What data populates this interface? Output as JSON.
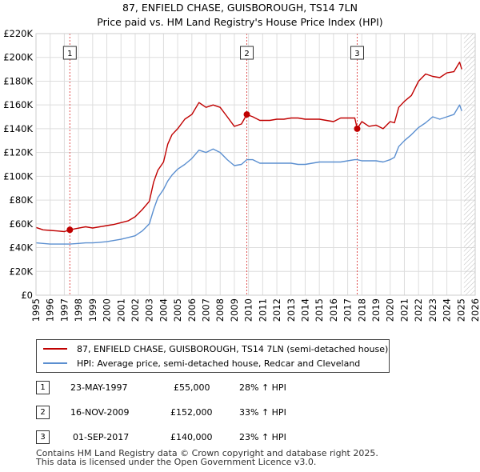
{
  "title_line1": "87, ENFIELD CHASE, GUISBOROUGH, TS14 7LN",
  "title_line2": "Price paid vs. HM Land Registry's House Price Index (HPI)",
  "colors": {
    "property": "#c00000",
    "hpi": "#5b8fd0",
    "grid": "#dddddd",
    "marker_line": "#e05050",
    "future_hatch": "#bbbbbb"
  },
  "chart_data": {
    "type": "line",
    "title": "87, ENFIELD CHASE, GUISBOROUGH, TS14 7LN — Price paid vs. HM Land Registry's House Price Index (HPI)",
    "xlabel": "",
    "ylabel": "",
    "xlim": [
      1995,
      2026
    ],
    "ylim": [
      0,
      220000
    ],
    "x_ticks": [
      "1995",
      "1996",
      "1997",
      "1998",
      "1999",
      "2000",
      "2001",
      "2002",
      "2003",
      "2004",
      "2005",
      "2006",
      "2007",
      "2008",
      "2009",
      "2010",
      "2011",
      "2012",
      "2013",
      "2014",
      "2015",
      "2016",
      "2017",
      "2018",
      "2019",
      "2020",
      "2021",
      "2022",
      "2023",
      "2024",
      "2025",
      "2026"
    ],
    "y_ticks": [
      "£0",
      "£20K",
      "£40K",
      "£60K",
      "£80K",
      "£100K",
      "£120K",
      "£140K",
      "£160K",
      "£180K",
      "£200K",
      "£220K"
    ],
    "grid": true,
    "data_end_year": 2025.2,
    "series": [
      {
        "name": "87, ENFIELD CHASE, GUISBOROUGH, TS14 7LN (semi-detached house)",
        "x": [
          1995.0,
          1995.5,
          1996.0,
          1996.5,
          1997.0,
          1997.39,
          1997.8,
          1998.5,
          1999.0,
          1999.5,
          2000.0,
          2000.5,
          2001.0,
          2001.5,
          2002.0,
          2002.5,
          2003.0,
          2003.3,
          2003.6,
          2004.0,
          2004.3,
          2004.6,
          2005.0,
          2005.5,
          2006.0,
          2006.5,
          2007.0,
          2007.5,
          2008.0,
          2008.5,
          2009.0,
          2009.5,
          2009.88,
          2010.3,
          2010.8,
          2011.5,
          2012.0,
          2012.5,
          2013.0,
          2013.5,
          2014.0,
          2014.5,
          2015.0,
          2015.5,
          2016.0,
          2016.5,
          2017.0,
          2017.5,
          2017.67,
          2018.0,
          2018.5,
          2019.0,
          2019.5,
          2020.0,
          2020.3,
          2020.6,
          2021.0,
          2021.5,
          2022.0,
          2022.5,
          2023.0,
          2023.5,
          2024.0,
          2024.5,
          2024.9,
          2025.05
        ],
        "y": [
          57000,
          55000,
          54500,
          54000,
          53500,
          55000,
          56000,
          57500,
          56500,
          57500,
          58500,
          59500,
          61000,
          62500,
          66000,
          72000,
          79000,
          95000,
          105000,
          112000,
          127000,
          135000,
          140000,
          148000,
          152000,
          162000,
          158000,
          160000,
          158000,
          150000,
          142000,
          144000,
          152000,
          150000,
          147000,
          147000,
          148000,
          148000,
          149000,
          149000,
          148000,
          148000,
          148000,
          147000,
          146000,
          149000,
          149000,
          149000,
          140000,
          146000,
          142000,
          143000,
          140000,
          146000,
          145000,
          158000,
          163000,
          168000,
          180000,
          186000,
          184000,
          183000,
          187000,
          188000,
          196000,
          190000
        ]
      },
      {
        "name": "HPI: Average price, semi-detached house, Redcar and Cleveland",
        "x": [
          1995.0,
          1995.5,
          1996.0,
          1996.5,
          1997.0,
          1997.39,
          1998.0,
          1998.5,
          1999.0,
          1999.5,
          2000.0,
          2000.5,
          2001.0,
          2001.5,
          2002.0,
          2002.5,
          2003.0,
          2003.3,
          2003.6,
          2004.0,
          2004.3,
          2004.6,
          2005.0,
          2005.5,
          2006.0,
          2006.5,
          2007.0,
          2007.5,
          2008.0,
          2008.5,
          2009.0,
          2009.5,
          2009.88,
          2010.3,
          2010.8,
          2011.5,
          2012.0,
          2012.5,
          2013.0,
          2013.5,
          2014.0,
          2014.5,
          2015.0,
          2015.5,
          2016.0,
          2016.5,
          2017.0,
          2017.5,
          2017.67,
          2018.0,
          2018.5,
          2019.0,
          2019.5,
          2020.0,
          2020.3,
          2020.6,
          2021.0,
          2021.5,
          2022.0,
          2022.5,
          2023.0,
          2023.5,
          2024.0,
          2024.5,
          2024.9,
          2025.05
        ],
        "y": [
          44000,
          43500,
          43000,
          43000,
          43000,
          43000,
          43500,
          44000,
          44000,
          44500,
          45000,
          46000,
          47000,
          48500,
          50000,
          54000,
          60000,
          72000,
          82000,
          89000,
          96000,
          101000,
          106000,
          110000,
          115000,
          122000,
          120000,
          123000,
          120000,
          114000,
          109000,
          110000,
          114000,
          114000,
          111000,
          111000,
          111000,
          111000,
          111000,
          110000,
          110000,
          111000,
          112000,
          112000,
          112000,
          112000,
          113000,
          114000,
          114000,
          113000,
          113000,
          113000,
          112000,
          114000,
          116000,
          125000,
          130000,
          135000,
          141000,
          145000,
          150000,
          148000,
          150000,
          152000,
          160000,
          155000
        ]
      }
    ],
    "sales": [
      {
        "label": "1",
        "x": 1997.39,
        "y": 55000,
        "date": "23-MAY-1997",
        "price": "£55,000",
        "hpi": "28% ↑ HPI"
      },
      {
        "label": "2",
        "x": 2009.88,
        "y": 152000,
        "date": "16-NOV-2009",
        "price": "£152,000",
        "hpi": "33% ↑ HPI"
      },
      {
        "label": "3",
        "x": 2017.67,
        "y": 140000,
        "date": "01-SEP-2017",
        "price": "£140,000",
        "hpi": "23% ↑ HPI"
      }
    ]
  },
  "legend": {
    "property": "87, ENFIELD CHASE, GUISBOROUGH, TS14 7LN (semi-detached house)",
    "hpi": "HPI: Average price, semi-detached house, Redcar and Cleveland"
  },
  "footer": {
    "line1": "Contains HM Land Registry data © Crown copyright and database right 2025.",
    "line2": "This data is licensed under the Open Government Licence v3.0."
  }
}
